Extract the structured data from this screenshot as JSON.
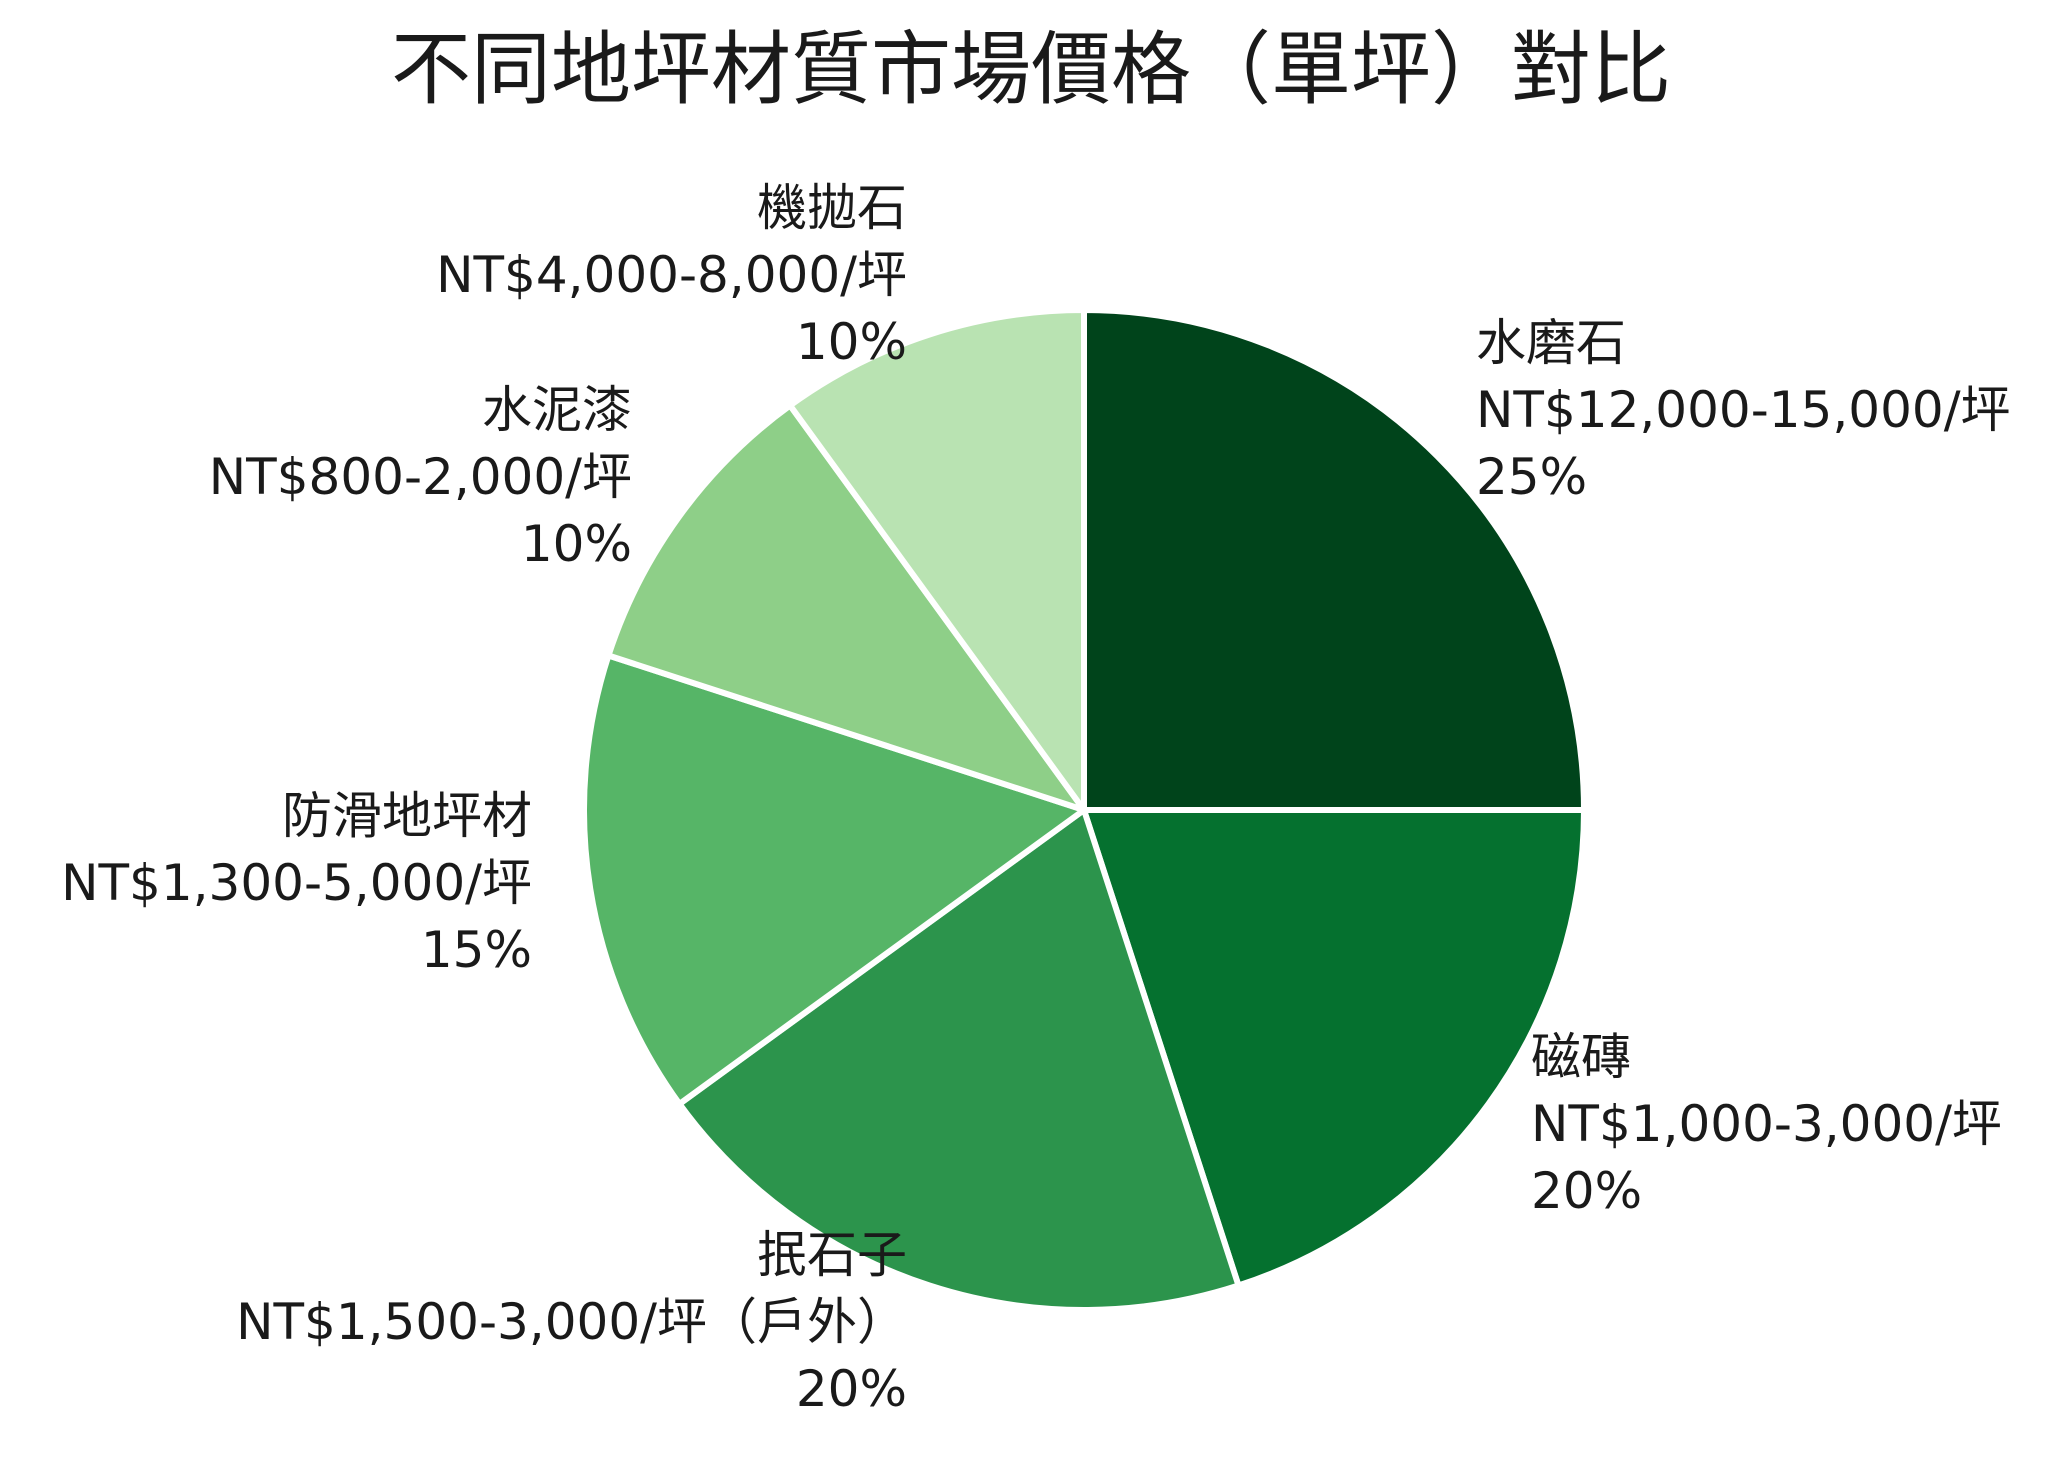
{
  "chart_data": {
    "type": "pie",
    "title": "不同地坪材質市場價格（單坪）對比",
    "start_angle_deg": 0,
    "direction": "clockwise",
    "slices": [
      {
        "name": "水磨石",
        "price": "NT$12,000-15,000/坪",
        "percent_label": "25%",
        "value": 25,
        "color": "#00441b"
      },
      {
        "name": "磁磚",
        "price": "NT$1,000-3,000/坪",
        "percent_label": "20%",
        "value": 20,
        "color": "#05712f"
      },
      {
        "name": "抿石子",
        "price": "NT$1,500-3,000/坪（戶外）",
        "percent_label": "20%",
        "value": 20,
        "color": "#2c944c"
      },
      {
        "name": "防滑地坪材",
        "price": "NT$1,300-5,000/坪",
        "percent_label": "15%",
        "value": 15,
        "color": "#56b567"
      },
      {
        "name": "水泥漆",
        "price": "NT$800-2,000/坪",
        "percent_label": "10%",
        "value": 10,
        "color": "#8ecf88"
      },
      {
        "name": "機拋石",
        "price": "NT$4,000-8,000/坪",
        "percent_label": "10%",
        "value": 10,
        "color": "#b9e3b2"
      }
    ]
  }
}
